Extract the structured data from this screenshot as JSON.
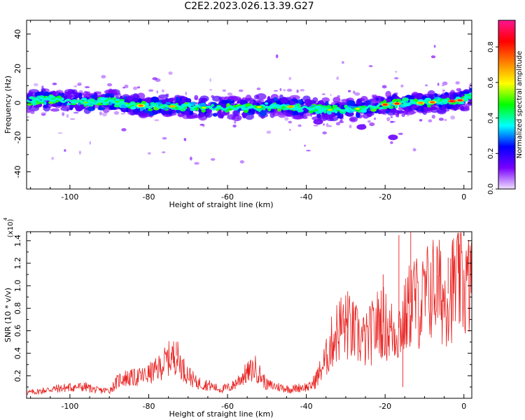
{
  "title": "C2E2.2023.026.13.39.G27",
  "chart_data": [
    {
      "type": "heatmap",
      "xlabel": "Height of straight line (km)",
      "ylabel": "Frequency (Hz)",
      "xlim": [
        -111,
        2
      ],
      "ylim": [
        -50,
        48
      ],
      "xticks": [
        -100,
        -80,
        -60,
        -40,
        -20,
        0
      ],
      "yticks": [
        -40,
        -20,
        0,
        20,
        40
      ],
      "ridge": {
        "x": [
          -111,
          -105,
          -100,
          -95,
          -90,
          -85,
          -80,
          -75,
          -70,
          -65,
          -60,
          -55,
          -50,
          -45,
          -40,
          -35,
          -30,
          -25,
          -20,
          -15,
          -10,
          -5,
          -2,
          0,
          2
        ],
        "frequency": [
          1,
          2,
          1,
          0,
          1,
          -1,
          -2,
          -2,
          -2,
          -3,
          -3,
          -3,
          -2,
          -2,
          -3,
          -4,
          -4,
          -3,
          -1,
          0,
          0,
          1,
          1,
          2,
          4
        ]
      },
      "colorbar": {
        "label": "Normalized spectral amplitude",
        "range": [
          0,
          0.95
        ],
        "ticks": [
          "0.0",
          "0.2",
          "0.4",
          "0.6",
          "0.8"
        ],
        "colors": [
          "#f0e0ff",
          "#7a00ff",
          "#0000ff",
          "#00ffff",
          "#00ff00",
          "#ffff00",
          "#ff8000",
          "#ff0000",
          "#ff1493"
        ]
      }
    },
    {
      "type": "line",
      "xlabel": "Height of straight line (km)",
      "ylabel": "SNR (10 * v/v)",
      "y_multiplier": "(x10^4)",
      "xlim": [
        -111,
        2
      ],
      "ylim": [
        0,
        1.48
      ],
      "xticks": [
        -100,
        -80,
        -60,
        -40,
        -20,
        0
      ],
      "yticks": [
        0.2,
        0.4,
        0.6,
        0.8,
        1.0,
        1.2,
        1.4
      ],
      "color": "#e8201e",
      "series": [
        {
          "x": [
            -111,
            -108,
            -105,
            -102,
            -99,
            -96,
            -93,
            -90,
            -87,
            -84,
            -81,
            -78,
            -75,
            -73,
            -71,
            -68,
            -65,
            -62,
            -59,
            -56,
            -53,
            -50,
            -47,
            -44,
            -41,
            -39,
            -37,
            -35,
            -33,
            -31,
            -29,
            -27,
            -25,
            -23,
            -21,
            -19,
            -17,
            -15,
            -13,
            -11,
            -9,
            -7,
            -5,
            -3,
            -1,
            1,
            2
          ],
          "y": [
            0.05,
            0.06,
            0.08,
            0.09,
            0.1,
            0.1,
            0.07,
            0.07,
            0.18,
            0.18,
            0.2,
            0.25,
            0.35,
            0.38,
            0.25,
            0.14,
            0.12,
            0.08,
            0.1,
            0.2,
            0.27,
            0.12,
            0.1,
            0.08,
            0.1,
            0.1,
            0.2,
            0.35,
            0.55,
            0.65,
            0.62,
            0.55,
            0.5,
            0.6,
            0.7,
            0.6,
            0.6,
            0.7,
            0.9,
            0.82,
            0.95,
            1.0,
            0.88,
            0.98,
            1.05,
            0.98,
            1.05
          ]
        }
      ]
    }
  ]
}
